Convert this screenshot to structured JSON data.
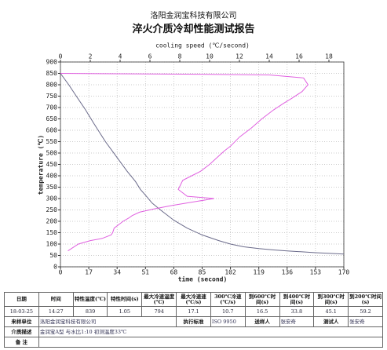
{
  "header": {
    "company": "洛阳金润宝科技有限公司",
    "title": "淬火介质冷却性能测试报告"
  },
  "chart_data": {
    "type": "line",
    "xlabel": "time (second)",
    "x2label": "cooling speed (℃/second)",
    "ylabel": "temperature (℃)",
    "xlim": [
      0,
      170
    ],
    "xticks": [
      0,
      17,
      34,
      51,
      68,
      85,
      102,
      119,
      136,
      153,
      170
    ],
    "x2lim": [
      0,
      19
    ],
    "x2ticks": [
      0,
      2,
      4,
      6,
      8,
      10,
      12,
      14,
      16,
      18
    ],
    "ylim": [
      0,
      900
    ],
    "yticks": [
      0,
      50,
      100,
      150,
      200,
      250,
      300,
      350,
      400,
      450,
      500,
      550,
      600,
      650,
      700,
      750,
      800,
      850,
      900
    ],
    "grid": true,
    "series": [
      {
        "color": "#6a6a8a",
        "x": [
          0,
          5,
          10,
          15,
          20,
          27,
          34,
          40,
          45,
          48,
          51,
          55,
          60,
          68,
          76,
          85,
          95,
          102,
          110,
          119,
          128,
          136,
          145,
          153,
          162,
          170
        ],
        "values": [
          850,
          800,
          745,
          690,
          630,
          550,
          480,
          420,
          375,
          340,
          315,
          280,
          250,
          205,
          170,
          140,
          115,
          100,
          88,
          80,
          74,
          70,
          66,
          62,
          59,
          56
        ]
      },
      {
        "color": "#e060e0",
        "axis": "x2",
        "x": [
          0,
          5,
          10,
          14,
          16.3,
          16.6,
          16.2,
          15.5,
          15,
          14.3,
          13.5,
          12.8,
          12,
          11.4,
          11,
          10.5,
          10,
          9.4,
          8.8,
          8.2,
          7.9,
          8.5,
          10.3,
          7.5,
          6.3,
          5.3,
          4.8,
          4.6,
          4.2,
          3.6,
          3.5,
          3.4,
          2.8,
          2,
          1.2,
          0.5
        ],
        "values": [
          850,
          848,
          846,
          843,
          830,
          800,
          770,
          740,
          720,
          690,
          650,
          610,
          570,
          530,
          510,
          480,
          450,
          420,
          400,
          380,
          340,
          310,
          300,
          270,
          255,
          240,
          225,
          215,
          200,
          170,
          150,
          140,
          125,
          115,
          100,
          70
        ]
      }
    ]
  },
  "table": {
    "header": [
      "日期",
      "时间",
      "特性温度(℃)",
      "特性时间(s)",
      "最大冷速温度(℃)",
      "最大冷速速(℃/s)",
      "300℃冷速(℃/s)",
      "到600℃时间(s)",
      "到400℃时间(s)",
      "到300℃时间(s)",
      "到200℃时间(s)"
    ],
    "row": [
      "18-03-25",
      "14:27",
      "839",
      "1.05",
      "794",
      "17.1",
      "10.7",
      "16.5",
      "33.8",
      "45.1",
      "59.2"
    ],
    "sender_unit": [
      "来样单位",
      "洛阳金润宝科技有限公司",
      "执行标准",
      "ISO 9950",
      "送样人",
      "张安奇",
      "测试人",
      "张安奇"
    ],
    "medium": [
      "介质描述",
      "金润宝A型  与水比1:10  初测温度33℃"
    ],
    "remark": "备 注"
  }
}
